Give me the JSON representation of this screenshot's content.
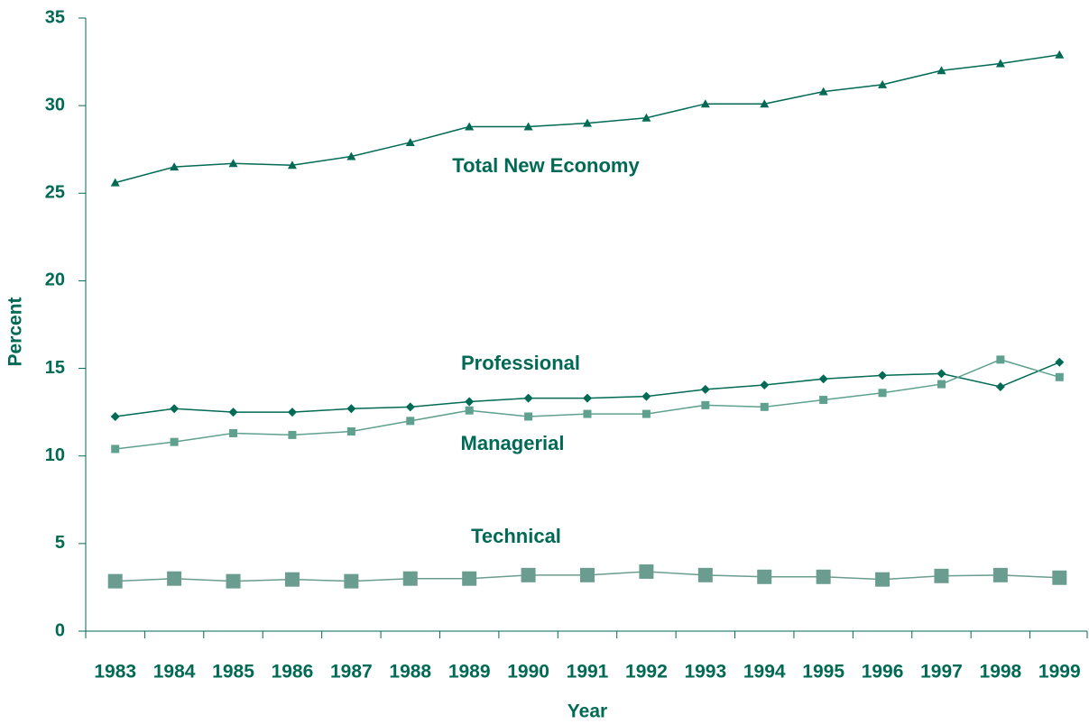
{
  "chart_data": {
    "type": "line",
    "x_label": "Year",
    "y_label": "Percent",
    "categories": [
      "1983",
      "1984",
      "1985",
      "1986",
      "1987",
      "1988",
      "1989",
      "1990",
      "1991",
      "1992",
      "1993",
      "1994",
      "1995",
      "1996",
      "1997",
      "1998",
      "1999"
    ],
    "ylim": [
      0,
      35
    ],
    "yticks": [
      0,
      5,
      10,
      15,
      20,
      25,
      30,
      35
    ],
    "series": [
      {
        "name": "Total New Economy",
        "color": "#006a55",
        "marker": "triangle",
        "values": [
          25.6,
          26.5,
          26.7,
          26.6,
          27.1,
          27.9,
          28.8,
          28.8,
          29.0,
          29.3,
          30.1,
          30.1,
          30.8,
          31.2,
          32.0,
          32.4,
          32.9
        ]
      },
      {
        "name": "Professional",
        "color": "#006a55",
        "marker": "diamond",
        "values": [
          12.25,
          12.7,
          12.5,
          12.5,
          12.7,
          12.8,
          13.1,
          13.3,
          13.3,
          13.4,
          13.8,
          14.05,
          14.4,
          14.6,
          14.7,
          13.95,
          15.35
        ]
      },
      {
        "name": "Managerial",
        "color": "#5fa08f",
        "marker": "square",
        "values": [
          10.4,
          10.8,
          11.3,
          11.2,
          11.4,
          12.0,
          12.6,
          12.25,
          12.4,
          12.4,
          12.9,
          12.8,
          13.2,
          13.6,
          14.1,
          15.5,
          14.5
        ]
      },
      {
        "name": "Technical",
        "color": "#6a9c8f",
        "marker": "big-square",
        "values": [
          2.85,
          3.0,
          2.85,
          2.95,
          2.85,
          3.0,
          3.0,
          3.2,
          3.2,
          3.4,
          3.2,
          3.1,
          3.1,
          2.95,
          3.15,
          3.2,
          3.05
        ]
      }
    ]
  }
}
